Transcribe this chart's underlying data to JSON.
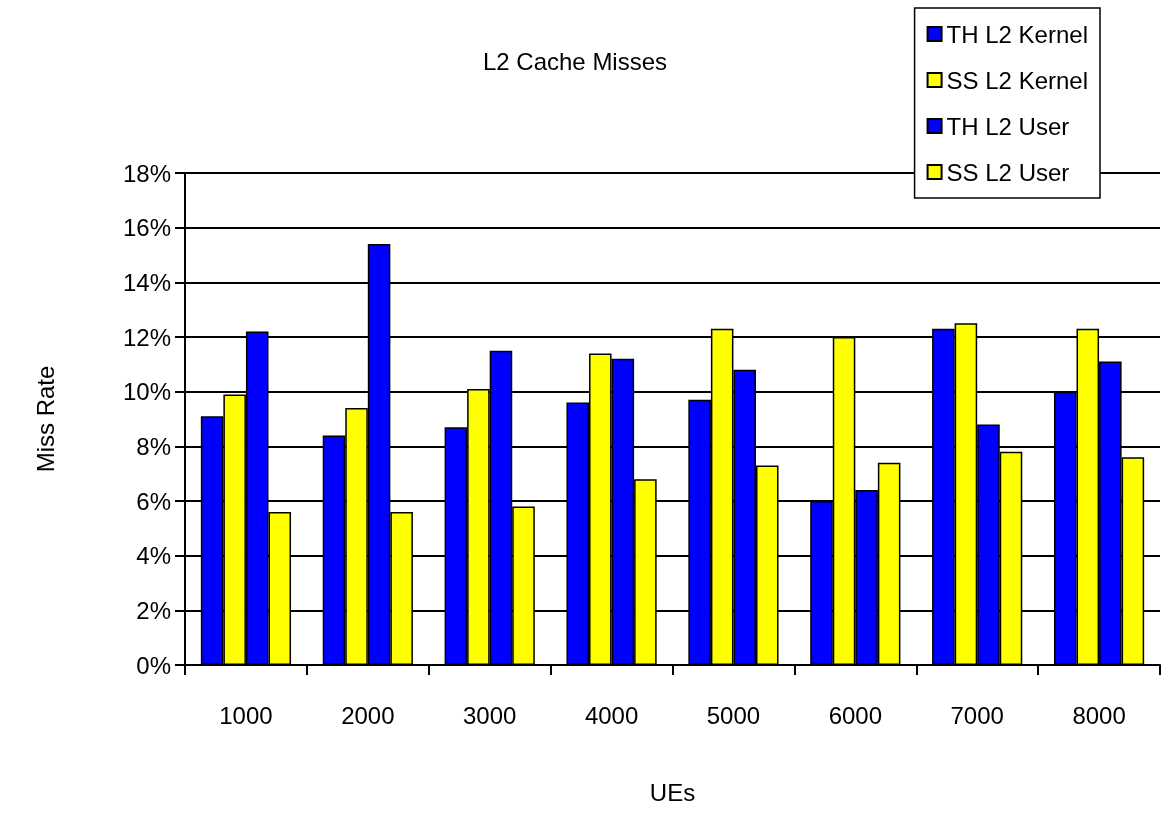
{
  "chart_data": {
    "type": "bar",
    "title": "L2 Cache Misses",
    "xlabel": "UEs",
    "ylabel": "Miss Rate",
    "categories": [
      "1000",
      "2000",
      "3000",
      "4000",
      "5000",
      "6000",
      "7000",
      "8000"
    ],
    "series": [
      {
        "name": "TH L2 Kernel",
        "color": "#0000ff",
        "values": [
          9.1,
          8.4,
          8.7,
          9.6,
          9.7,
          6.0,
          12.3,
          10.0
        ]
      },
      {
        "name": "SS L2 Kernel",
        "color": "#ffff00",
        "values": [
          9.9,
          9.4,
          10.1,
          11.4,
          12.3,
          12.0,
          12.5,
          12.3
        ]
      },
      {
        "name": "TH L2 User",
        "color": "#0000ff",
        "values": [
          12.2,
          15.4,
          11.5,
          11.2,
          10.8,
          6.4,
          8.8,
          11.1
        ]
      },
      {
        "name": "SS L2 User",
        "color": "#ffff00",
        "values": [
          5.6,
          5.6,
          5.8,
          6.8,
          7.3,
          7.4,
          7.8,
          7.6
        ]
      }
    ],
    "ylim": [
      0,
      18
    ],
    "yticks": [
      {
        "value": 0,
        "label": "0%"
      },
      {
        "value": 2,
        "label": "2%"
      },
      {
        "value": 4,
        "label": "4%"
      },
      {
        "value": 6,
        "label": "6%"
      },
      {
        "value": 8,
        "label": "8%"
      },
      {
        "value": 10,
        "label": "10%"
      },
      {
        "value": 12,
        "label": "12%"
      },
      {
        "value": 14,
        "label": "14%"
      },
      {
        "value": 16,
        "label": "16%"
      },
      {
        "value": 18,
        "label": "18%"
      }
    ],
    "grid": "y",
    "legend": "top right"
  }
}
